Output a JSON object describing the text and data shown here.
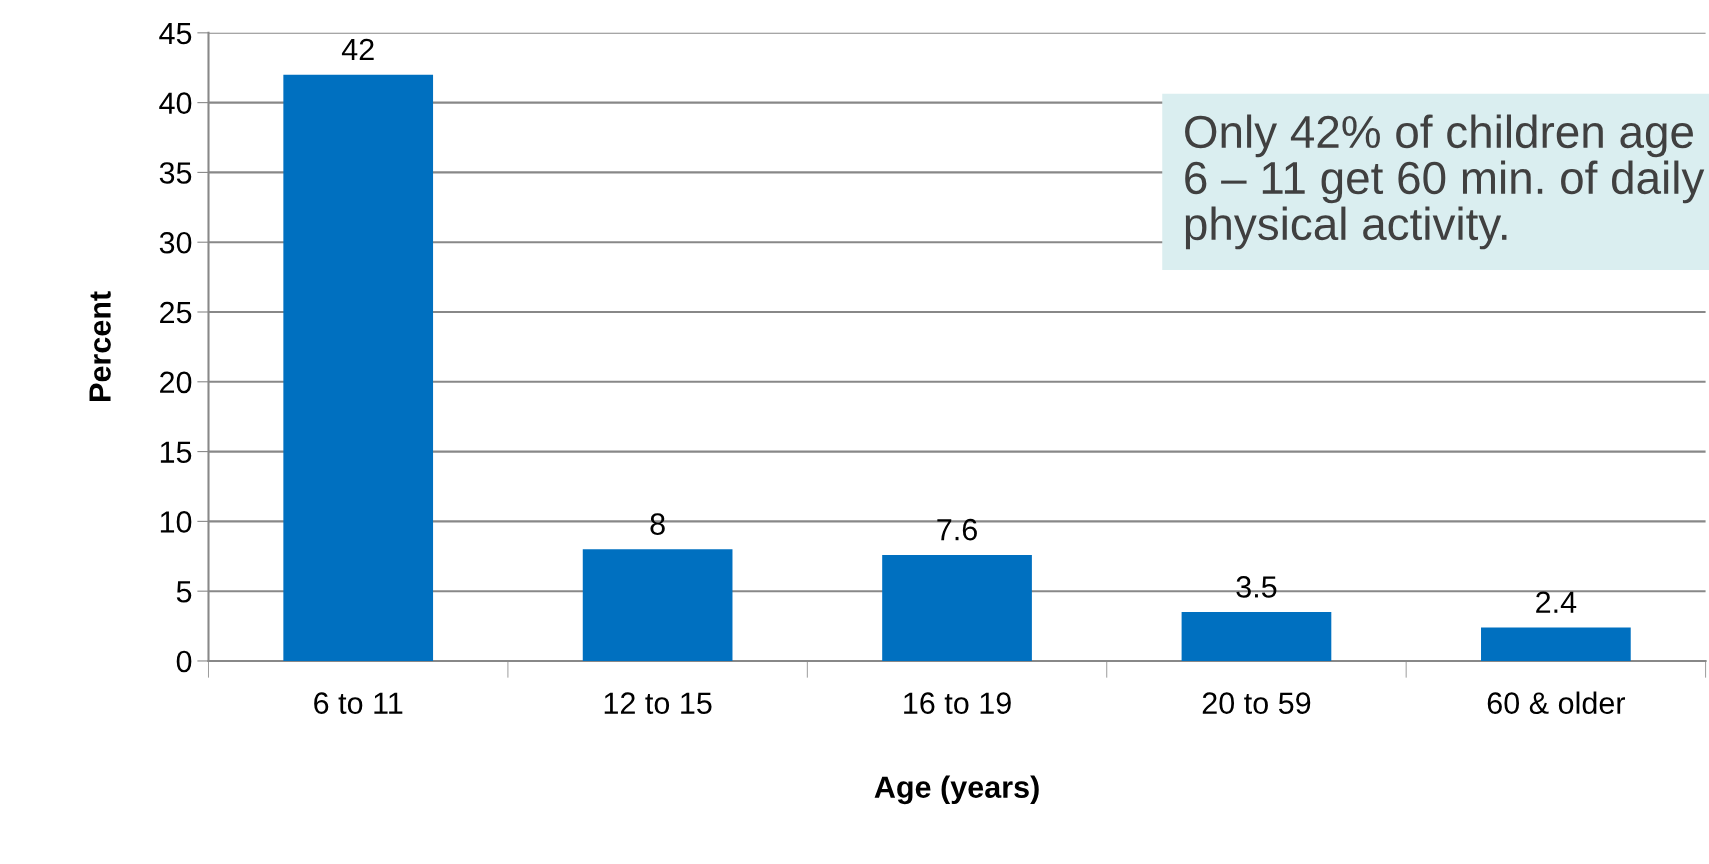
{
  "chart_data": {
    "type": "bar",
    "xlabel": "Age (years)",
    "ylabel": "Percent",
    "categories": [
      "6 to 11",
      "12 to 15",
      "16 to 19",
      "20 to 59",
      "60 & older"
    ],
    "values": [
      42,
      8,
      7.6,
      3.5,
      2.4
    ],
    "color": "#0070c0",
    "ylim": [
      0,
      45
    ],
    "yticks": [
      0,
      5,
      10,
      15,
      20,
      25,
      30,
      35,
      40,
      45
    ],
    "grid": "y",
    "data_labels": true,
    "annotations": [
      "Only 42% of children age 6 – 11 get 60 min. of daily physical activity."
    ]
  }
}
